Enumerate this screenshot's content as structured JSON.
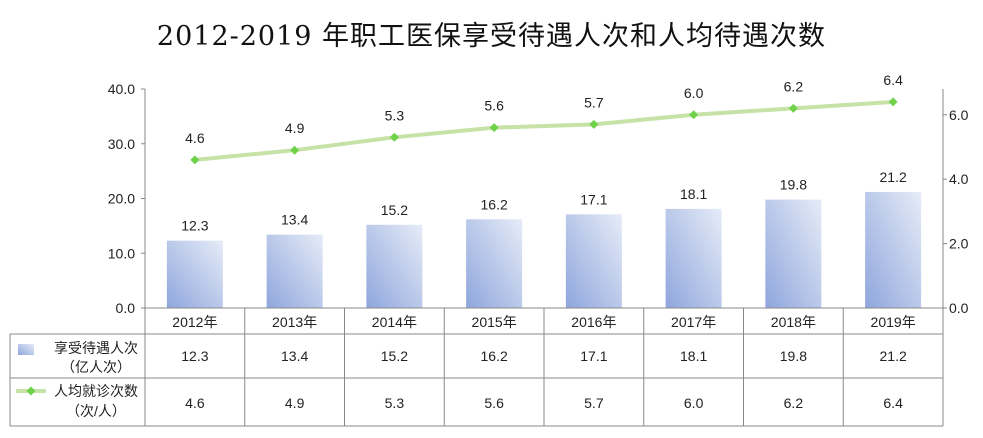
{
  "title": "2012-2019 年职工医保享受待遇人次和人均待遇次数",
  "chart_data": {
    "type": "bar",
    "categories": [
      "2012年",
      "2013年",
      "2014年",
      "2015年",
      "2016年",
      "2017年",
      "2018年",
      "2019年"
    ],
    "series": [
      {
        "name_lines": [
          "享受待遇人次",
          "（亿人次）"
        ],
        "type": "bar",
        "axis": "left",
        "values": [
          12.3,
          13.4,
          15.2,
          16.2,
          17.1,
          18.1,
          19.8,
          21.2
        ],
        "labels": [
          "12.3",
          "13.4",
          "15.2",
          "16.2",
          "17.1",
          "18.1",
          "19.8",
          "21.2"
        ]
      },
      {
        "name_lines": [
          "人均就诊次数",
          "（次/人）"
        ],
        "type": "line",
        "axis": "right",
        "values": [
          4.6,
          4.9,
          5.3,
          5.6,
          5.7,
          6.0,
          6.2,
          6.4
        ],
        "labels": [
          "4.6",
          "4.9",
          "5.3",
          "5.6",
          "5.7",
          "6.0",
          "6.2",
          "6.4"
        ]
      }
    ],
    "y_left": {
      "range": [
        0,
        40
      ],
      "ticks": [
        "0.0",
        "10.0",
        "20.0",
        "30.0",
        "40.0"
      ]
    },
    "y_right": {
      "range": [
        0,
        6.8
      ],
      "ticks": [
        "0.0",
        "2.0",
        "4.0",
        "6.0"
      ]
    },
    "grid": false,
    "legend": "data-table-below"
  },
  "colors": {
    "bar_dark": "#8fa6dd",
    "bar_light": "#e6ecf7",
    "line": "#c6e2a6",
    "marker": "#6fd24a",
    "axis": "#888888"
  }
}
